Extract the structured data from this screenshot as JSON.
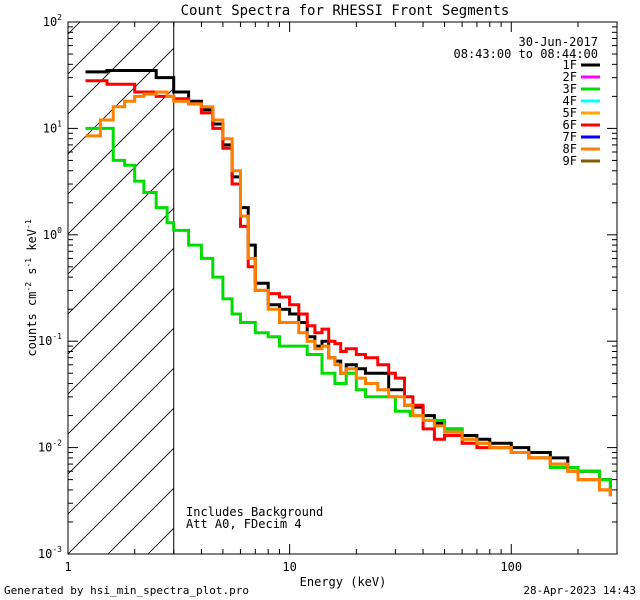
{
  "chart_data": {
    "type": "line",
    "title": "Count Spectra for RHESSI Front Segments",
    "xlabel": "Energy (keV)",
    "ylabel": "counts cm^-2 s^-1 keV^-1",
    "ylabel_parts": {
      "base": "counts cm",
      "exp1": "-2",
      "mid": " s",
      "exp2": "-1",
      "tail": " keV",
      "exp3": "-1"
    },
    "xscale": "log",
    "yscale": "log",
    "xlim": [
      1,
      300
    ],
    "ylim": [
      0.001,
      100
    ],
    "x_ticks": [
      {
        "value": 1,
        "label": "1"
      },
      {
        "value": 10,
        "label": "10"
      },
      {
        "value": 100,
        "label": "100"
      }
    ],
    "y_ticks": [
      {
        "value": 0.001,
        "base": "10",
        "exp": "-3"
      },
      {
        "value": 0.01,
        "base": "10",
        "exp": "-2"
      },
      {
        "value": 0.1,
        "base": "10",
        "exp": "-1"
      },
      {
        "value": 1,
        "base": "10",
        "exp": "0"
      },
      {
        "value": 10,
        "base": "10",
        "exp": "1"
      },
      {
        "value": 100,
        "base": "10",
        "exp": "2"
      }
    ],
    "excluded_region": {
      "x_range": [
        1,
        3
      ],
      "style": "hatched"
    },
    "date": "30-Jun-2017",
    "time_range": "08:43:00 to 08:44:00",
    "annotations": [
      "Includes Background",
      "Att A0, FDecim 4"
    ],
    "legend": [
      {
        "name": "1F",
        "color": "#000000"
      },
      {
        "name": "2F",
        "color": "#ff00ff"
      },
      {
        "name": "3F",
        "color": "#00dd00"
      },
      {
        "name": "4F",
        "color": "#00ffff"
      },
      {
        "name": "5F",
        "color": "#ffa500"
      },
      {
        "name": "6F",
        "color": "#ff0000"
      },
      {
        "name": "7F",
        "color": "#0000ff"
      },
      {
        "name": "8F",
        "color": "#ff8000"
      },
      {
        "name": "9F",
        "color": "#806000"
      }
    ],
    "series": [
      {
        "name": "1F",
        "color": "#000000",
        "x": [
          1.2,
          1.5,
          2,
          2.5,
          3,
          3.5,
          4,
          4.5,
          5,
          5.5,
          6,
          6.5,
          7,
          8,
          9,
          10,
          11,
          12,
          13,
          14,
          15,
          16,
          17,
          18,
          20,
          22,
          25,
          28,
          30,
          33,
          36,
          40,
          45,
          50,
          60,
          70,
          80,
          100,
          120,
          150,
          180,
          200,
          250,
          280
        ],
        "y": [
          34,
          35,
          35,
          30,
          22,
          18,
          15,
          11,
          7,
          3.5,
          1.8,
          0.8,
          0.35,
          0.22,
          0.2,
          0.18,
          0.15,
          0.11,
          0.09,
          0.1,
          0.07,
          0.065,
          0.05,
          0.06,
          0.055,
          0.05,
          0.05,
          0.035,
          0.035,
          0.025,
          0.024,
          0.02,
          0.017,
          0.015,
          0.013,
          0.012,
          0.011,
          0.01,
          0.009,
          0.008,
          0.0065,
          0.006,
          0.005,
          0.0035
        ]
      },
      {
        "name": "3F",
        "color": "#00dd00",
        "x": [
          1.2,
          1.4,
          1.6,
          1.8,
          2,
          2.2,
          2.5,
          2.8,
          3,
          3.5,
          4,
          4.5,
          5,
          5.5,
          6,
          7,
          8,
          9,
          10,
          12,
          14,
          16,
          18,
          20,
          22,
          25,
          30,
          35,
          40,
          50,
          60,
          70,
          80,
          100,
          120,
          150,
          200,
          250,
          280
        ],
        "y": [
          10,
          10,
          5,
          4.5,
          3.2,
          2.5,
          1.8,
          1.3,
          1.1,
          0.8,
          0.6,
          0.4,
          0.25,
          0.18,
          0.15,
          0.12,
          0.11,
          0.09,
          0.09,
          0.075,
          0.05,
          0.04,
          0.05,
          0.035,
          0.03,
          0.03,
          0.022,
          0.02,
          0.018,
          0.015,
          0.012,
          0.011,
          0.01,
          0.009,
          0.008,
          0.0065,
          0.006,
          0.005,
          0.004
        ]
      },
      {
        "name": "6F",
        "color": "#ff0000",
        "x": [
          1.2,
          1.5,
          2,
          2.5,
          3,
          3.5,
          4,
          4.5,
          5,
          5.5,
          6,
          6.5,
          7,
          8,
          9,
          10,
          11,
          12,
          13,
          14,
          15,
          16,
          17,
          18,
          20,
          22,
          25,
          28,
          30,
          33,
          36,
          40,
          45,
          50,
          60,
          70,
          80,
          100,
          120,
          150,
          180,
          200,
          250,
          280
        ],
        "y": [
          28,
          26,
          22,
          20,
          19,
          17,
          14,
          10,
          6.5,
          3,
          1.2,
          0.5,
          0.3,
          0.28,
          0.26,
          0.22,
          0.18,
          0.14,
          0.12,
          0.13,
          0.1,
          0.095,
          0.08,
          0.085,
          0.075,
          0.07,
          0.06,
          0.05,
          0.045,
          0.03,
          0.025,
          0.015,
          0.012,
          0.013,
          0.011,
          0.01,
          0.01,
          0.009,
          0.008,
          0.007,
          0.006,
          0.005,
          0.004,
          0.0035
        ]
      },
      {
        "name": "8F",
        "color": "#ff8000",
        "x": [
          1.2,
          1.4,
          1.6,
          1.8,
          2,
          2.2,
          2.5,
          2.8,
          3,
          3.5,
          4,
          4.5,
          5,
          5.5,
          6,
          6.5,
          7,
          8,
          9,
          10,
          11,
          12,
          13,
          14,
          15,
          16,
          17,
          18,
          20,
          22,
          25,
          28,
          30,
          33,
          36,
          40,
          45,
          50,
          60,
          70,
          80,
          100,
          120,
          150,
          180,
          200,
          250,
          280
        ],
        "y": [
          8.5,
          12,
          16,
          18,
          20,
          21,
          22,
          20,
          18,
          17,
          16,
          12,
          8,
          4,
          1.5,
          0.6,
          0.3,
          0.2,
          0.15,
          0.15,
          0.12,
          0.1,
          0.085,
          0.09,
          0.07,
          0.06,
          0.05,
          0.055,
          0.045,
          0.04,
          0.035,
          0.03,
          0.03,
          0.025,
          0.02,
          0.018,
          0.016,
          0.014,
          0.012,
          0.011,
          0.01,
          0.009,
          0.008,
          0.007,
          0.006,
          0.005,
          0.004,
          0.0035
        ]
      }
    ]
  },
  "footer": {
    "generated_by": "Generated by hsi_min_spectra_plot.pro",
    "timestamp": "28-Apr-2023 14:43"
  }
}
